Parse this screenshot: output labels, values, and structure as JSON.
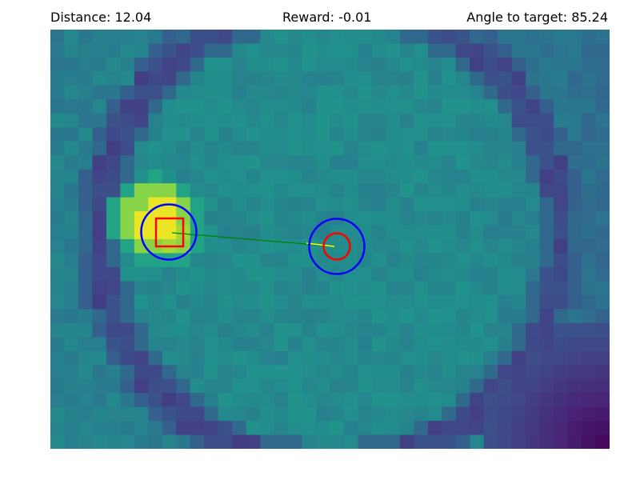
{
  "hud": {
    "distance_label": "Distance:",
    "distance_value": "12.04",
    "reward_label": "Reward:",
    "reward_value": "-0.01",
    "angle_label": "Angle to target:",
    "angle_value": "85.24"
  },
  "colors": {
    "background_teal": "#21918c",
    "background_teal_dark": "#2a788e",
    "ring_purple": "#443983",
    "ring_purple_dark": "#46327e",
    "corner_dark": "#440154",
    "hotspot_yellow": "#fde725",
    "hotspot_green": "#a0da39",
    "agent_ring": "#0000ff",
    "marker_red": "#ff0000",
    "path_line": "#008000",
    "heading_line": "#ffff00"
  },
  "scene": {
    "agent": {
      "name": "agent",
      "marker": "red-circle",
      "halo": "blue-circle"
    },
    "target": {
      "name": "target",
      "marker": "red-square",
      "halo": "blue-circle"
    }
  }
}
